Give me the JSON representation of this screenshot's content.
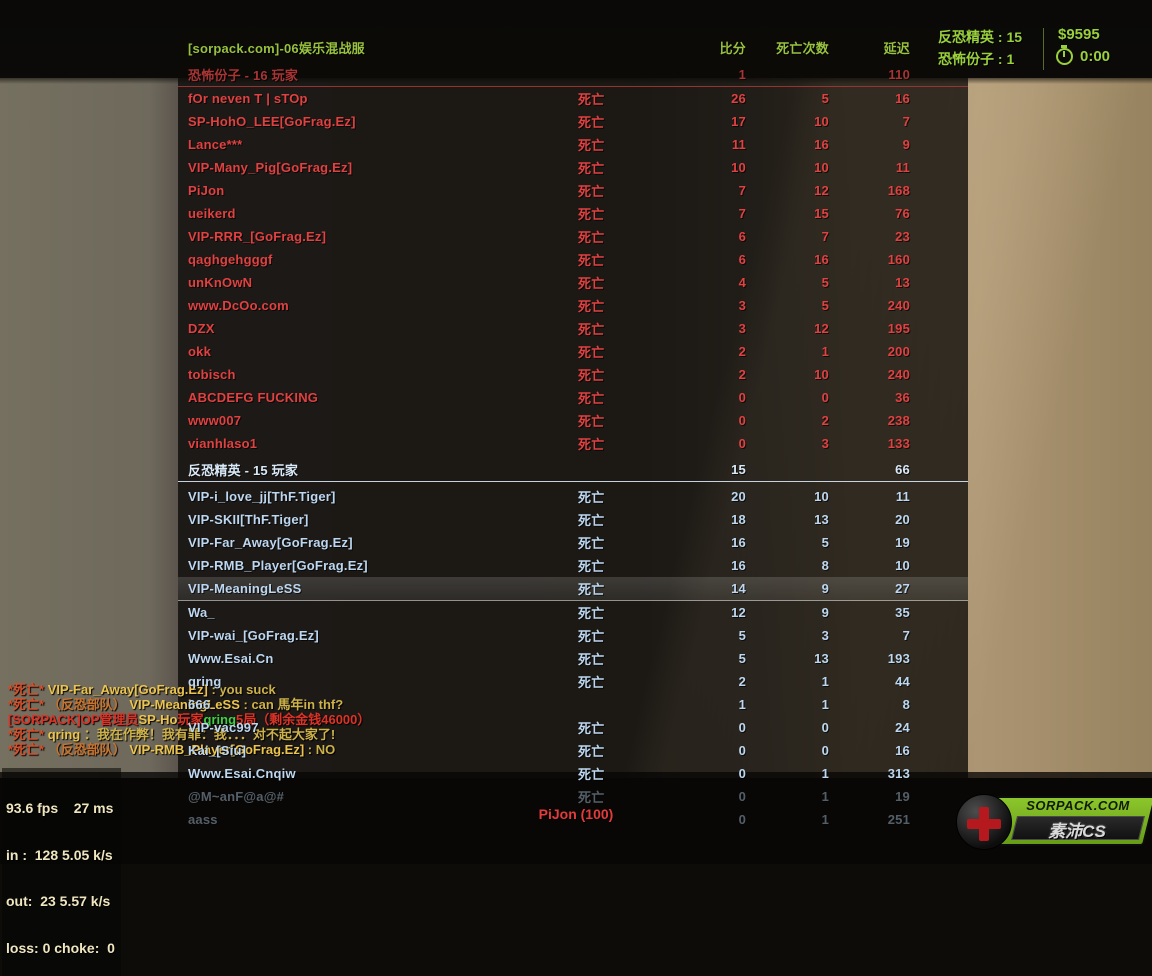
{
  "hud": {
    "server_name": "[sorpack.com]-06娱乐混战服",
    "columns": {
      "score": "比分",
      "deaths": "死亡次数",
      "latency": "延迟"
    },
    "top_right": {
      "ct_line": "反恐精英 : 15",
      "t_line": "恐怖份子 : 1",
      "money": "$9595",
      "timer": "0:00"
    },
    "spectating": "PiJon (100)"
  },
  "teams": [
    {
      "id": "t",
      "name": "恐怖份子",
      "dash": "-",
      "count_label": "16 玩家",
      "total_score": "1",
      "total_latency": "110",
      "players": [
        {
          "name": "fOr neven T | sTOp",
          "status": "死亡",
          "score": "26",
          "deaths": "5",
          "latency": "16"
        },
        {
          "name": "SP-HohO_LEE[GoFrag.Ez]",
          "status": "死亡",
          "score": "17",
          "deaths": "10",
          "latency": "7"
        },
        {
          "name": "Lance***",
          "status": "死亡",
          "score": "11",
          "deaths": "16",
          "latency": "9"
        },
        {
          "name": "VIP-Many_Pig[GoFrag.Ez]",
          "status": "死亡",
          "score": "10",
          "deaths": "10",
          "latency": "11"
        },
        {
          "name": "PiJon",
          "status": "死亡",
          "score": "7",
          "deaths": "12",
          "latency": "168"
        },
        {
          "name": "ueikerd",
          "status": "死亡",
          "score": "7",
          "deaths": "15",
          "latency": "76"
        },
        {
          "name": "VIP-RRR_[GoFrag.Ez]",
          "status": "死亡",
          "score": "6",
          "deaths": "7",
          "latency": "23"
        },
        {
          "name": "qaghgehgggf",
          "status": "死亡",
          "score": "6",
          "deaths": "16",
          "latency": "160"
        },
        {
          "name": "unKnOwN",
          "status": "死亡",
          "score": "4",
          "deaths": "5",
          "latency": "13"
        },
        {
          "name": "www.DcOo.com",
          "status": "死亡",
          "score": "3",
          "deaths": "5",
          "latency": "240"
        },
        {
          "name": "DZX",
          "status": "死亡",
          "score": "3",
          "deaths": "12",
          "latency": "195"
        },
        {
          "name": "okk",
          "status": "死亡",
          "score": "2",
          "deaths": "1",
          "latency": "200"
        },
        {
          "name": "tobisch",
          "status": "死亡",
          "score": "2",
          "deaths": "10",
          "latency": "240"
        },
        {
          "name": "ABCDEFG FUCKING",
          "status": "死亡",
          "score": "0",
          "deaths": "0",
          "latency": "36"
        },
        {
          "name": "www007",
          "status": "死亡",
          "score": "0",
          "deaths": "2",
          "latency": "238"
        },
        {
          "name": "vianhlaso1",
          "status": "死亡",
          "score": "0",
          "deaths": "3",
          "latency": "133"
        }
      ]
    },
    {
      "id": "ct",
      "name": "反恐精英",
      "dash": "-",
      "count_label": "15 玩家",
      "total_score": "15",
      "total_latency": "66",
      "players": [
        {
          "name": "VIP-i_love_jj[ThF.Tiger]",
          "status": "死亡",
          "score": "20",
          "deaths": "10",
          "latency": "11"
        },
        {
          "name": "VIP-SKII[ThF.Tiger]",
          "status": "死亡",
          "score": "18",
          "deaths": "13",
          "latency": "20"
        },
        {
          "name": "VIP-Far_Away[GoFrag.Ez]",
          "status": "死亡",
          "score": "16",
          "deaths": "5",
          "latency": "19"
        },
        {
          "name": "VIP-RMB_Player[GoFrag.Ez]",
          "status": "死亡",
          "score": "16",
          "deaths": "8",
          "latency": "10"
        },
        {
          "name": "VIP-MeaningLeSS",
          "status": "死亡",
          "score": "14",
          "deaths": "9",
          "latency": "27",
          "highlight": true
        },
        {
          "name": "Wa_",
          "status": "死亡",
          "score": "12",
          "deaths": "9",
          "latency": "35"
        },
        {
          "name": "VIP-wai_[GoFrag.Ez]",
          "status": "死亡",
          "score": "5",
          "deaths": "3",
          "latency": "7"
        },
        {
          "name": "Www.Esai.Cn",
          "status": "死亡",
          "score": "5",
          "deaths": "13",
          "latency": "193"
        },
        {
          "name": "qring",
          "status": "死亡",
          "score": "2",
          "deaths": "1",
          "latency": "44"
        },
        {
          "name": "666",
          "status": "",
          "score": "1",
          "deaths": "1",
          "latency": "8"
        },
        {
          "name": "VIP-vac997",
          "status": "死亡",
          "score": "0",
          "deaths": "0",
          "latency": "24"
        },
        {
          "name": "Kai_[Siu]",
          "status": "死亡",
          "score": "0",
          "deaths": "0",
          "latency": "16"
        },
        {
          "name": "Www.Esai.Cnqiw",
          "status": "死亡",
          "score": "0",
          "deaths": "1",
          "latency": "313"
        },
        {
          "name": "@M~anF@a@#",
          "status": "死亡",
          "score": "0",
          "deaths": "1",
          "latency": "19",
          "dim": true
        },
        {
          "name": "aass",
          "status": "",
          "score": "0",
          "deaths": "1",
          "latency": "251",
          "dim": true
        }
      ]
    }
  ],
  "chat": [
    {
      "spans": [
        {
          "t": "*死亡* ",
          "k": "death"
        },
        {
          "t": "VIP-Far_Away[GoFrag.Ez]",
          "k": "name"
        },
        {
          "t": " :  you suck",
          "k": "msg"
        }
      ]
    },
    {
      "spans": [
        {
          "t": "*死亡* ",
          "k": "death"
        },
        {
          "t": "（反恐部队） ",
          "k": "teamtag"
        },
        {
          "t": "VIP-MeaningLeSS",
          "k": "name"
        },
        {
          "t": " :  can 馬年in thf?",
          "k": "msg"
        }
      ]
    },
    {
      "spans": [
        {
          "t": "[SORPACK]",
          "k": "red"
        },
        {
          "t": "OP管理员",
          "k": "red"
        },
        {
          "t": "SP-Ho",
          "k": "name"
        },
        {
          "t": "玩家",
          "k": "red"
        },
        {
          "t": "qring",
          "k": "green"
        },
        {
          "t": "5局（剩余金钱46000）",
          "k": "red"
        }
      ]
    },
    {
      "spans": [
        {
          "t": "*死亡* ",
          "k": "death"
        },
        {
          "t": "qring",
          "k": "name"
        },
        {
          "t": " ：我在作弊！我有罪：我．．．对不起大家了!",
          "k": "msg"
        }
      ]
    },
    {
      "spans": [
        {
          "t": "*死亡* ",
          "k": "death"
        },
        {
          "t": "（反恐部队） ",
          "k": "teamtag"
        },
        {
          "t": "VIP-RMB_Player[GoFrag.Ez]",
          "k": "name"
        },
        {
          "t": " :  NO",
          "k": "msg"
        }
      ]
    }
  ],
  "netgraph": {
    "line1": "93.6 fps    27 ms",
    "line2": "in :  128 5.05 k/s",
    "line3": "out:  23 5.57 k/s",
    "line4": "loss: 0 choke:  0"
  },
  "logo": {
    "site": "SORPACK.COM",
    "brand": "素沛CS"
  },
  "colors": {
    "t_red": "#e04141",
    "ct_blue": "#bdd7f0",
    "hud_green": "#9ad03c",
    "spectator_red": "#e43b3b"
  }
}
